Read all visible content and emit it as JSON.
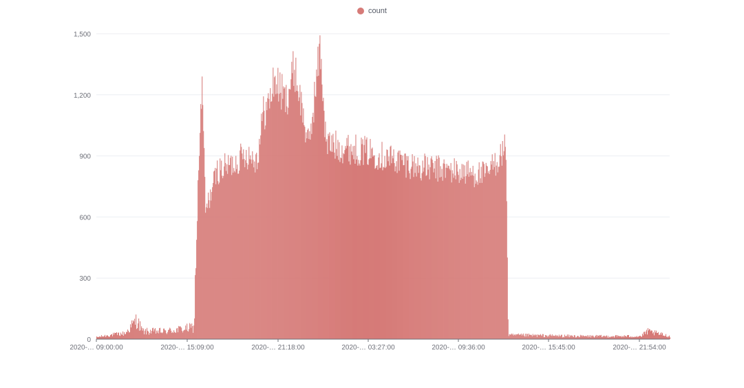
{
  "chart_data": {
    "type": "area",
    "legend": {
      "position": "top-center",
      "entries": [
        {
          "name": "count",
          "color": "#d67b78"
        }
      ]
    },
    "series": [
      {
        "name": "count",
        "color": "#d67b78",
        "x": [
          "2020-… 09:00:00",
          "2020-… 15:09:00",
          "2020-… 21:18:00",
          "2020-… 03:27:00",
          "2020-… 09:36:00",
          "2020-… 15:45:00",
          "2020-… 21:54:00"
        ],
        "profile_points": [
          [
            0.0,
            10
          ],
          [
            0.02,
            20
          ],
          [
            0.05,
            30
          ],
          [
            0.07,
            100
          ],
          [
            0.08,
            40
          ],
          [
            0.12,
            40
          ],
          [
            0.17,
            60
          ],
          [
            0.178,
            900
          ],
          [
            0.184,
            1300
          ],
          [
            0.19,
            650
          ],
          [
            0.21,
            860
          ],
          [
            0.24,
            900
          ],
          [
            0.26,
            950
          ],
          [
            0.28,
            920
          ],
          [
            0.29,
            1150
          ],
          [
            0.3,
            1200
          ],
          [
            0.31,
            1330
          ],
          [
            0.33,
            1220
          ],
          [
            0.345,
            1390
          ],
          [
            0.36,
            1150
          ],
          [
            0.37,
            980
          ],
          [
            0.39,
            1500
          ],
          [
            0.4,
            1000
          ],
          [
            0.43,
            980
          ],
          [
            0.47,
            960
          ],
          [
            0.52,
            920
          ],
          [
            0.56,
            880
          ],
          [
            0.6,
            870
          ],
          [
            0.65,
            850
          ],
          [
            0.68,
            840
          ],
          [
            0.714,
            980
          ],
          [
            0.718,
            20
          ],
          [
            0.75,
            20
          ],
          [
            0.85,
            15
          ],
          [
            0.95,
            15
          ],
          [
            0.96,
            40
          ],
          [
            1.0,
            15
          ]
        ]
      }
    ],
    "ylim": [
      0,
      1500
    ],
    "y_ticks": [
      "0",
      "300",
      "600",
      "900",
      "1,200",
      "1,500"
    ],
    "x_ticks": [
      "2020-… 09:00:00",
      "2020-… 15:09:00",
      "2020-… 21:18:00",
      "2020-… 03:27:00",
      "2020-… 09:36:00",
      "2020-… 15:45:00",
      "2020-… 21:54:00"
    ],
    "grid": true
  }
}
